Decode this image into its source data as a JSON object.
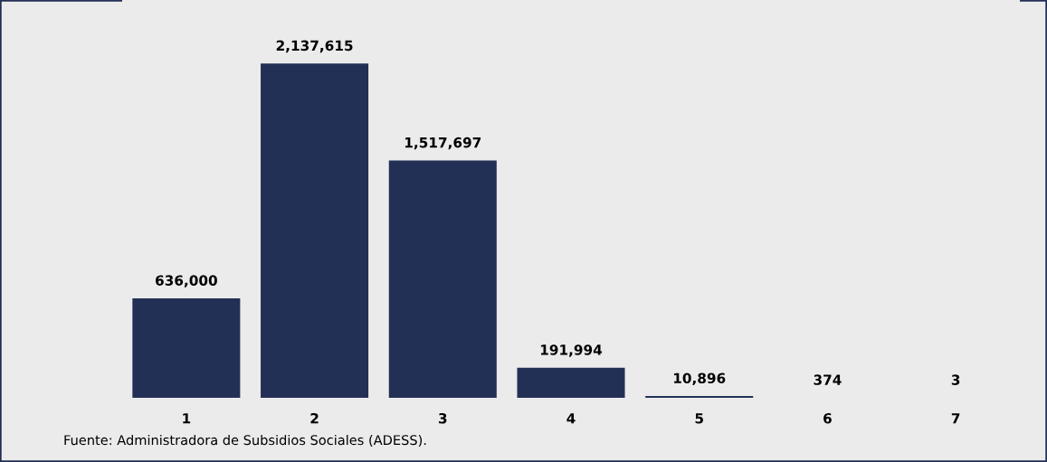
{
  "chart_data": {
    "type": "bar",
    "categories": [
      "1",
      "2",
      "3",
      "4",
      "5",
      "6",
      "7"
    ],
    "values": [
      636000,
      2137615,
      1517697,
      191994,
      10896,
      374,
      3
    ],
    "value_labels": [
      "636,000",
      "2,137,615",
      "1,517,697",
      "191,994",
      "10,896",
      "374",
      "3"
    ],
    "color": "#233056",
    "grid": false,
    "legend": false,
    "annotations": [
      "Fuente: Administradora de Subsidios Sociales (ADESS)."
    ]
  }
}
